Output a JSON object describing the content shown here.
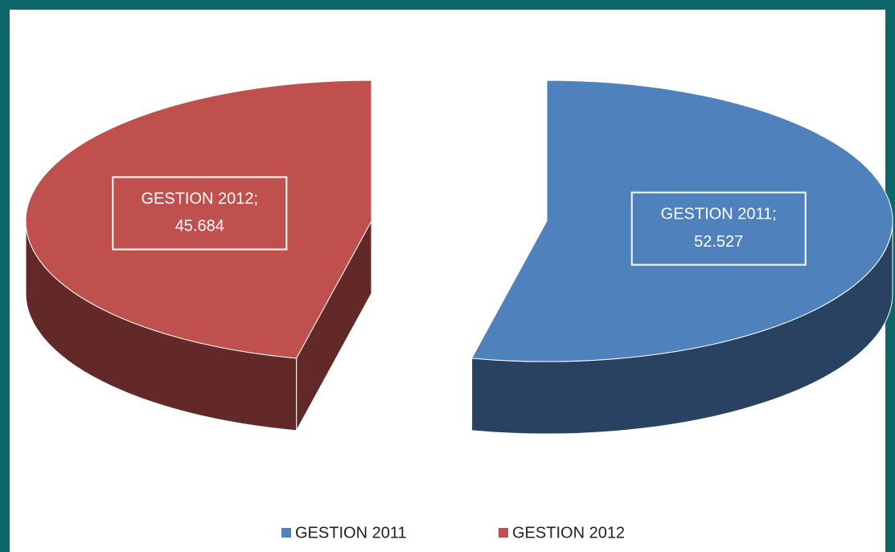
{
  "chart_data": {
    "type": "pie3d",
    "categories": [
      "GESTION 2011",
      "GESTION 2012"
    ],
    "values": [
      52.527,
      45.684
    ],
    "colors": [
      "#4f81bd",
      "#c0504d"
    ],
    "side_colors": [
      "#2a4262",
      "#632828"
    ],
    "label_separator": ";",
    "legend": "bottom"
  }
}
